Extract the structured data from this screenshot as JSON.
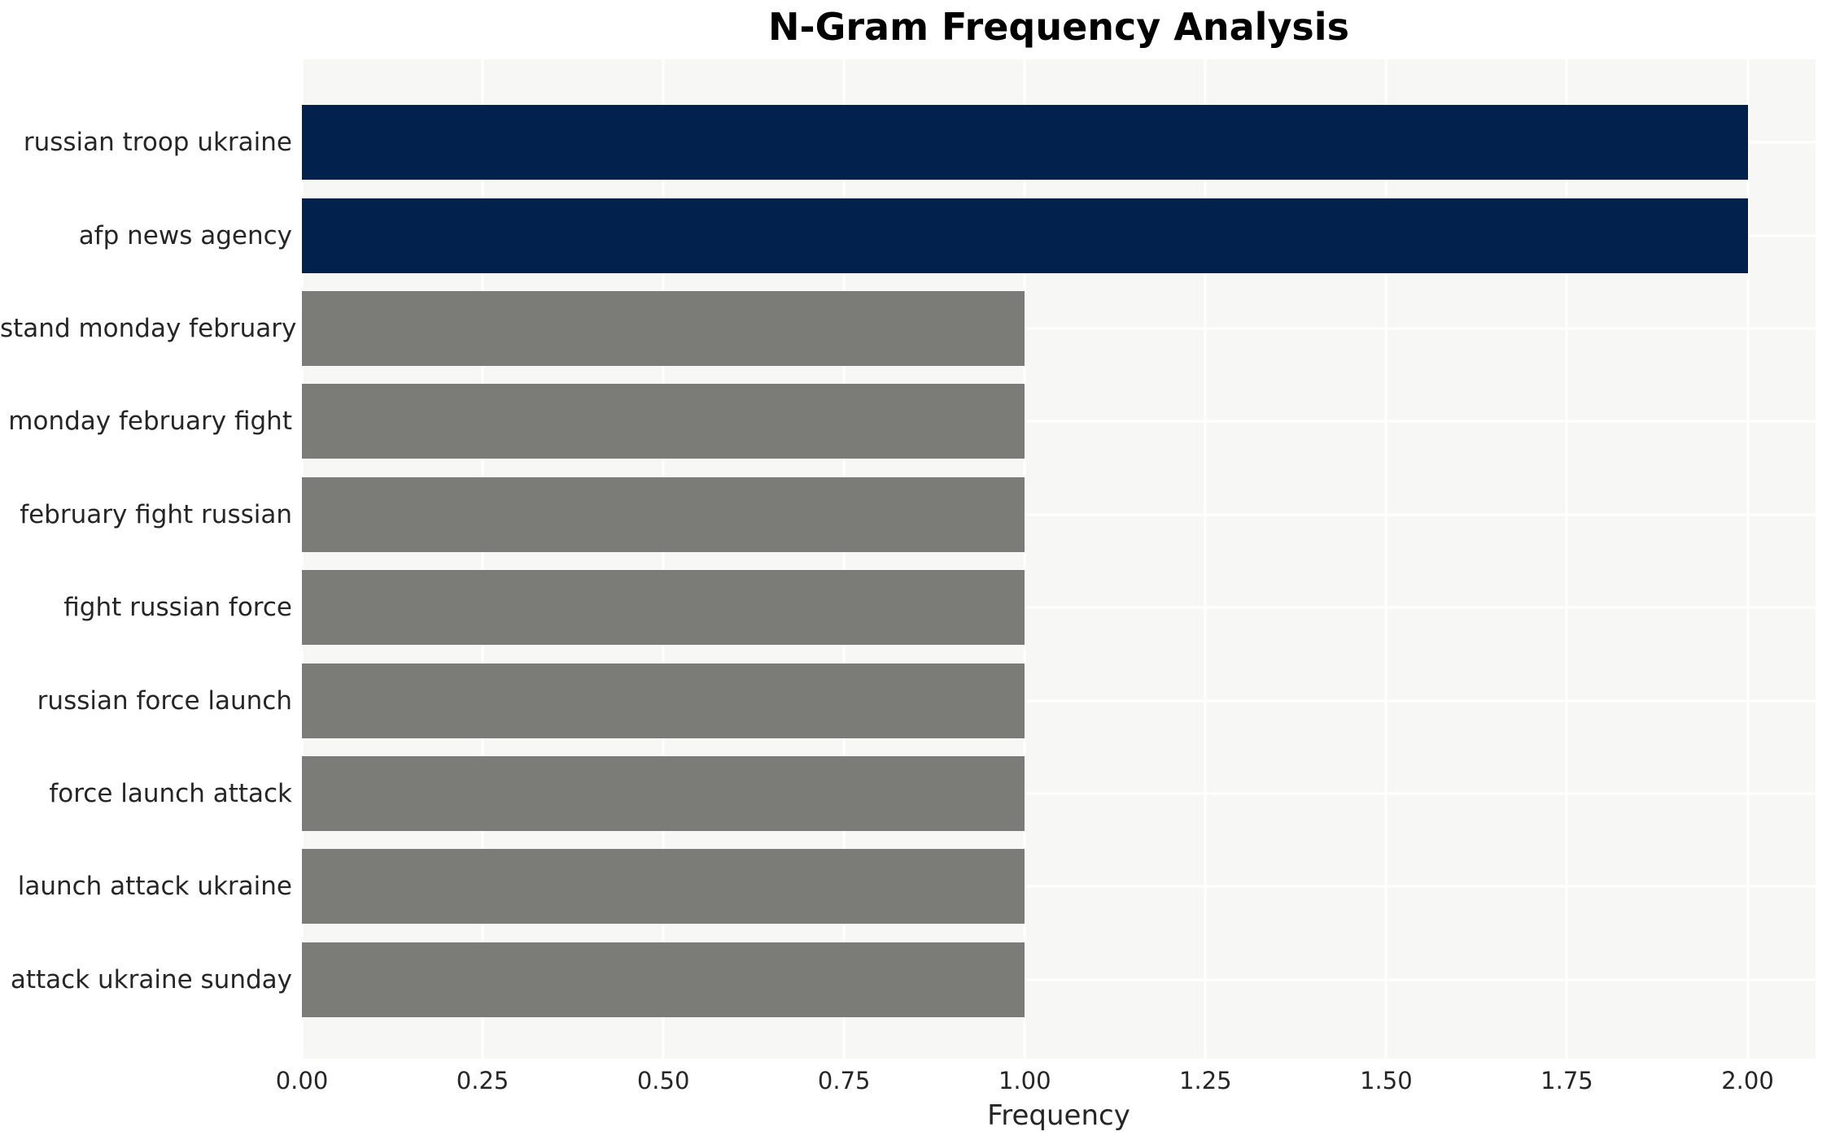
{
  "chart_data": {
    "type": "bar",
    "orientation": "horizontal",
    "title": "N-Gram Frequency Analysis",
    "xlabel": "Frequency",
    "ylabel": "",
    "categories": [
      "russian troop ukraine",
      "afp news agency",
      "stand monday february",
      "monday february fight",
      "february fight russian",
      "fight russian force",
      "russian force launch",
      "force launch attack",
      "launch attack ukraine",
      "attack ukraine sunday"
    ],
    "values": [
      2,
      2,
      1,
      1,
      1,
      1,
      1,
      1,
      1,
      1
    ],
    "bar_color_keys": [
      "highlight",
      "highlight",
      "default",
      "default",
      "default",
      "default",
      "default",
      "default",
      "default",
      "default"
    ],
    "xlim": [
      0,
      2.094
    ],
    "xticks": [
      {
        "value": 0.0,
        "label": "0.00"
      },
      {
        "value": 0.25,
        "label": "0.25"
      },
      {
        "value": 0.5,
        "label": "0.50"
      },
      {
        "value": 0.75,
        "label": "0.75"
      },
      {
        "value": 1.0,
        "label": "1.00"
      },
      {
        "value": 1.25,
        "label": "1.25"
      },
      {
        "value": 1.5,
        "label": "1.50"
      },
      {
        "value": 1.75,
        "label": "1.75"
      },
      {
        "value": 2.0,
        "label": "2.00"
      }
    ],
    "grid": "white vertical gridlines at each x tick and horizontal gridlines at each category center, drawn under bars",
    "legend": "none",
    "colors": {
      "highlight": "#02214d",
      "default": "#7b7b77",
      "panel_bg": "#f7f7f6",
      "figure_bg": "#ffffff",
      "gridline": "#ffffff",
      "text": "#262626",
      "title_text": "#000000"
    }
  }
}
